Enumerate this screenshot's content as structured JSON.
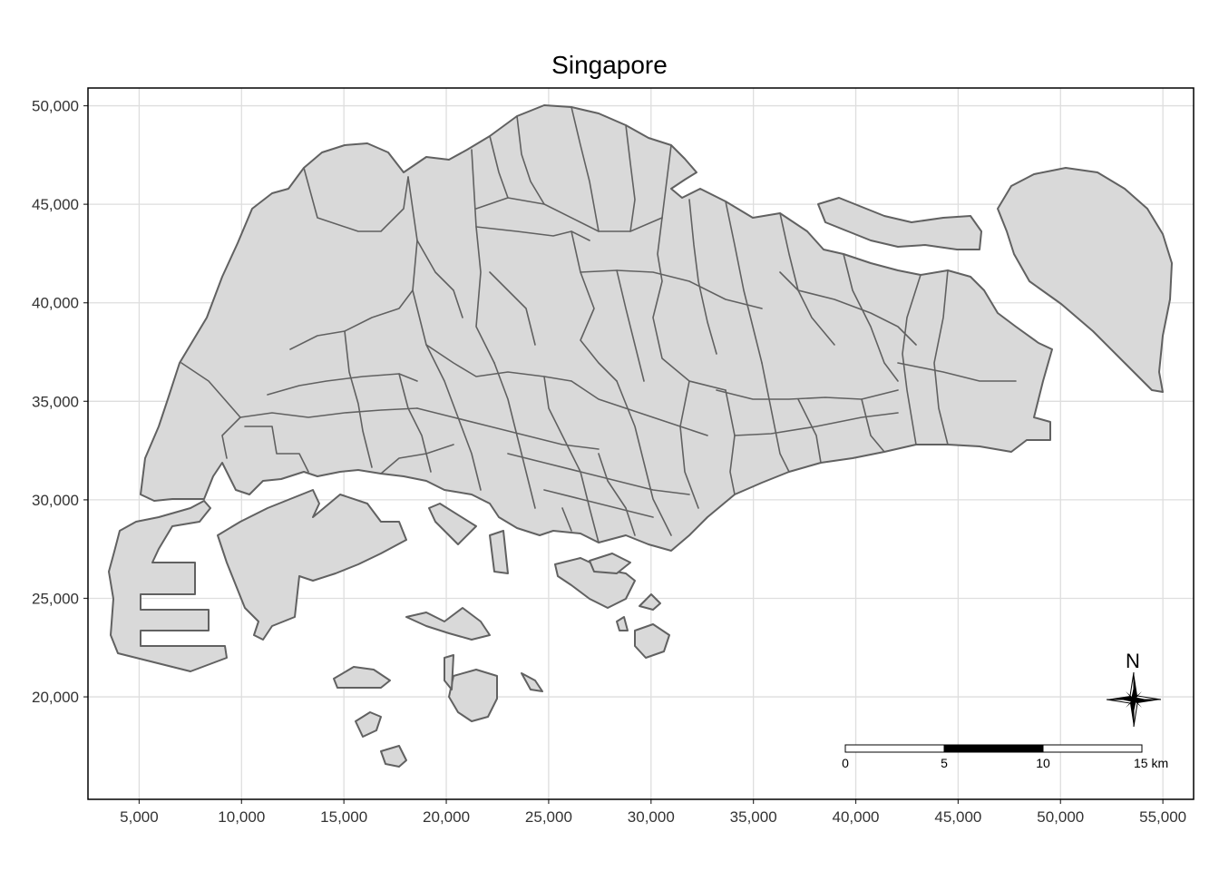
{
  "map": {
    "title": "Singapore",
    "x_axis": {
      "range": [
        2500,
        56500
      ],
      "ticks": [
        5000,
        10000,
        15000,
        20000,
        25000,
        30000,
        35000,
        40000,
        45000,
        50000,
        55000
      ],
      "tick_labels": [
        "5,000",
        "10,000",
        "15,000",
        "20,000",
        "25,000",
        "30,000",
        "35,000",
        "40,000",
        "45,000",
        "50,000",
        "55,000"
      ]
    },
    "y_axis": {
      "range": [
        14800,
        50900
      ],
      "ticks": [
        20000,
        25000,
        30000,
        35000,
        40000,
        45000,
        50000
      ],
      "tick_labels": [
        "20,000",
        "25,000",
        "30,000",
        "35,000",
        "40,000",
        "45,000",
        "50,000"
      ]
    },
    "grid": true,
    "fill_color": "#d9d9d9",
    "border_color": "#616161",
    "scale_bar": {
      "labels": [
        "0",
        "5",
        "10",
        "15 km"
      ],
      "segments_km": [
        5,
        5,
        5
      ],
      "segment_colors": [
        "#ffffff",
        "#000000",
        "#ffffff"
      ]
    },
    "north_arrow": {
      "label": "N",
      "icon": "compass-rose-icon"
    }
  }
}
